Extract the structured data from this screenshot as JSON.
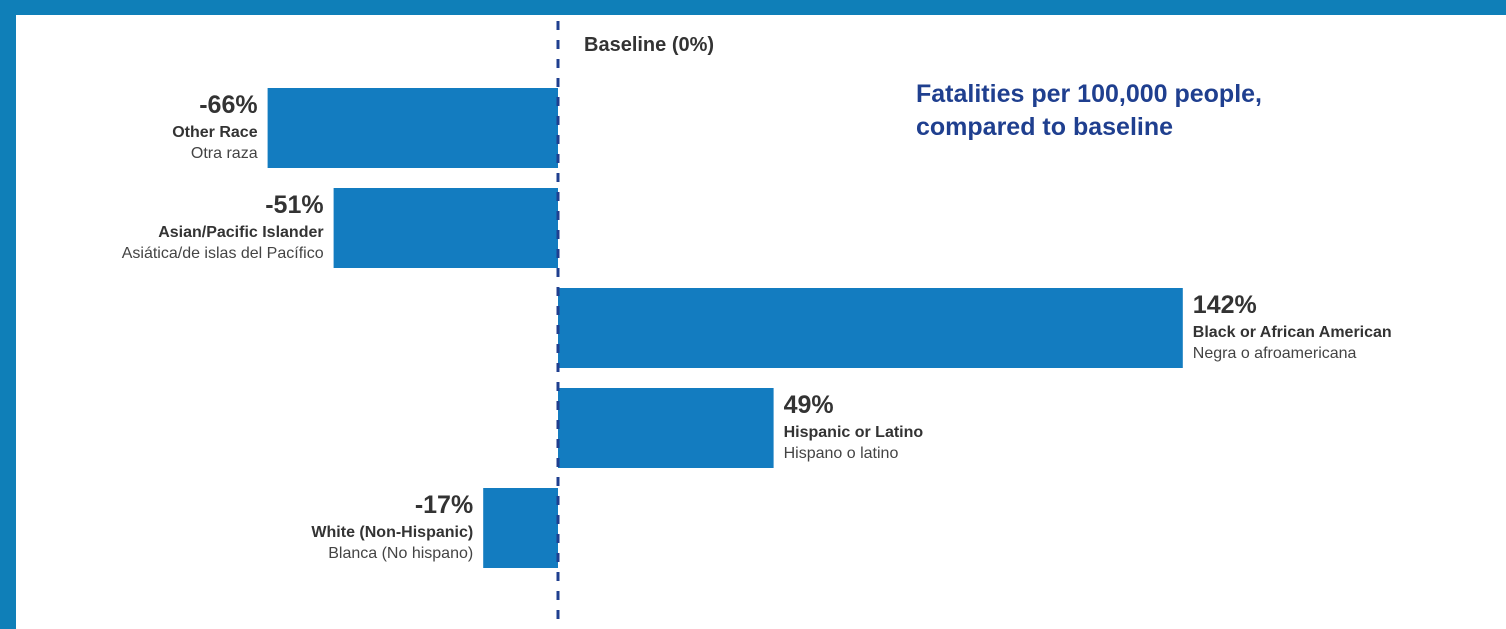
{
  "chart_data": {
    "type": "bar",
    "orientation": "horizontal",
    "title_lines": [
      "Fatalities per 100,000 people,",
      "compared to baseline"
    ],
    "baseline_label": "Baseline (0%)",
    "baseline_value": 0,
    "categories": [
      {
        "name": "Other Race",
        "name_es": "Otra raza",
        "value": -66,
        "value_label": "-66%"
      },
      {
        "name": "Asian/Pacific Islander",
        "name_es": "Asiática/de islas del Pacífico",
        "value": -51,
        "value_label": "-51%"
      },
      {
        "name": "Black or African American",
        "name_es": "Negra o afroamericana",
        "value": 142,
        "value_label": "142%"
      },
      {
        "name": "Hispanic or Latino",
        "name_es": "Hispano o latino",
        "value": 49,
        "value_label": "49%"
      },
      {
        "name": "White (Non-Hispanic)",
        "name_es": "Blanca (No hispano)",
        "value": -17,
        "value_label": "-17%"
      }
    ],
    "unit": "%",
    "xlim": [
      -66,
      142
    ],
    "grid": false,
    "colors": {
      "bar": "#137cc0",
      "baseline": "#1f3f8f",
      "frame": "#0f7fb8",
      "title": "#1f3f8f",
      "value_text": "#333333",
      "category_text": "#333333",
      "spanish_text": "#444444"
    }
  }
}
